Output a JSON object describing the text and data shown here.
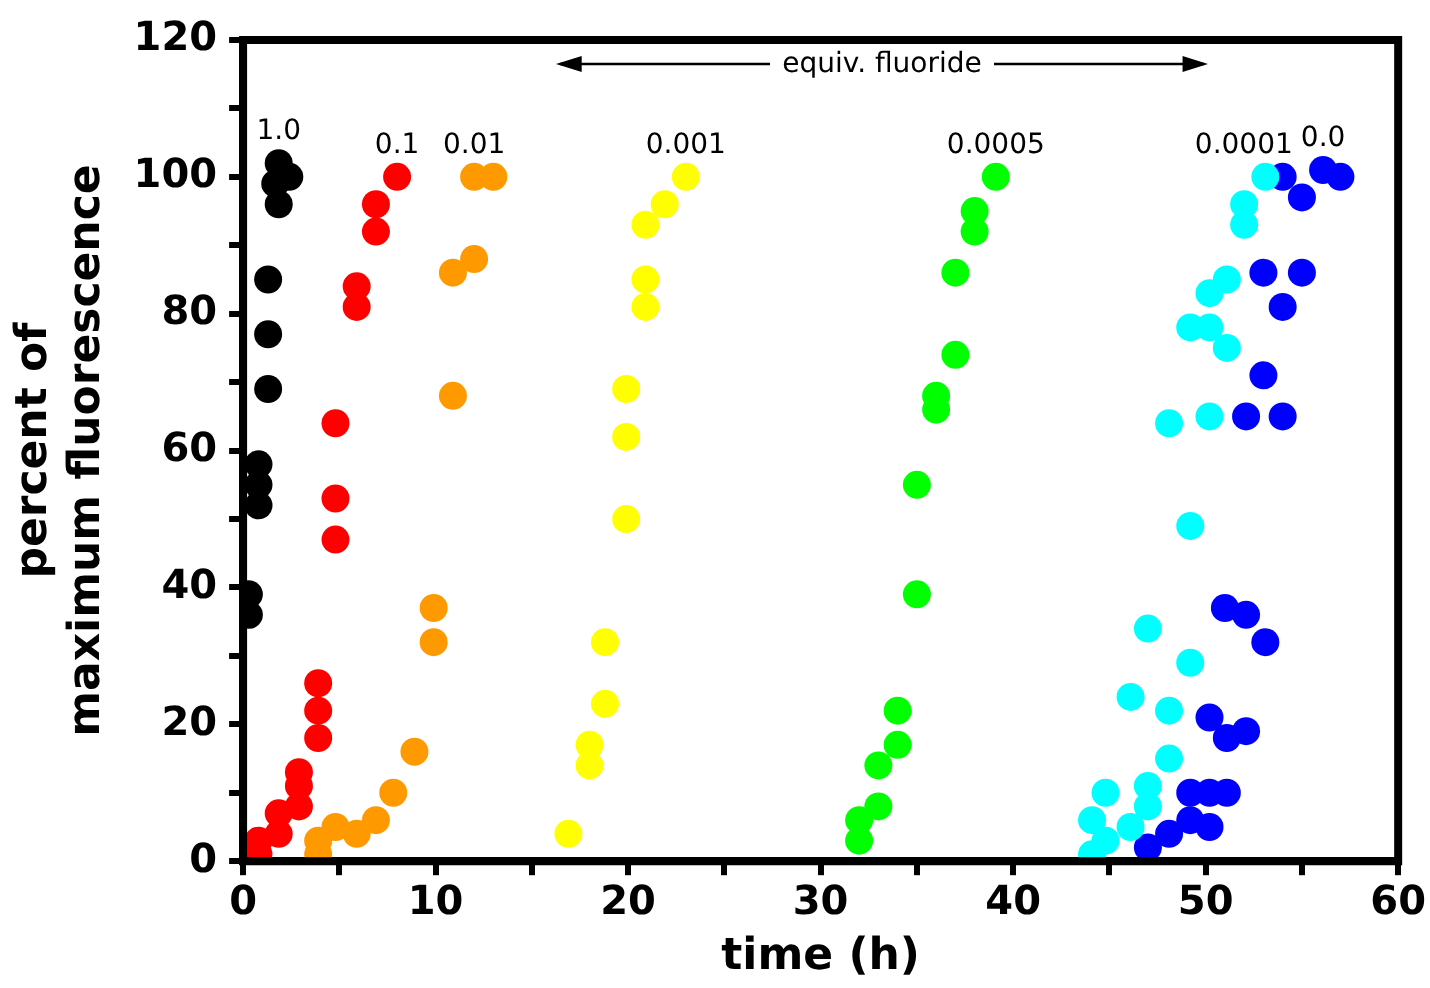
{
  "chart_data": {
    "type": "scatter",
    "xlabel": "time (h)",
    "ylabel": "percent of\nmaximum fluorescence",
    "annotations": [
      "equiv. fluoride"
    ],
    "xlim": [
      0,
      60
    ],
    "xticks": [
      0,
      {
        "value": 5,
        "label": null
      },
      10,
      {
        "value": 15,
        "label": null
      },
      20,
      {
        "value": 25,
        "label": null
      },
      30,
      {
        "value": 35,
        "label": null
      },
      40,
      {
        "value": 45,
        "label": null
      },
      50,
      {
        "value": 55,
        "label": null
      },
      60
    ],
    "ylim": [
      0,
      120
    ],
    "yticks": [
      0,
      {
        "value": 10,
        "label": null
      },
      20,
      {
        "value": 30,
        "label": null
      },
      40,
      {
        "value": 50,
        "label": null
      },
      60,
      {
        "value": 70,
        "label": null
      },
      80,
      {
        "value": 90,
        "label": null
      },
      100,
      {
        "value": 110,
        "label": null
      },
      120
    ],
    "grid": false,
    "legend": false,
    "marker": "circle",
    "series": [
      {
        "name": "1.0",
        "color": "#000000",
        "x": [
          1.85,
          2.4,
          1.67,
          1.85,
          1.3,
          1.3,
          1.3,
          0.8,
          0.8,
          0.8,
          0.3,
          0.3
        ],
        "values": [
          102,
          100,
          99,
          96,
          85,
          77,
          69,
          58,
          55,
          52,
          39,
          36
        ]
      },
      {
        "name": "0.1",
        "color": "#ff0000",
        "x": [
          8,
          6.9,
          6.9,
          5.9,
          5.9,
          4.8,
          4.8,
          4.8,
          3.9,
          3.9,
          3.9,
          2.9,
          2.9,
          2.9,
          1.85,
          1.85,
          0.8,
          0.8
        ],
        "values": [
          100,
          96,
          92,
          84,
          81,
          64,
          53,
          47,
          26,
          22,
          18,
          13,
          11,
          8,
          7,
          4,
          3,
          1
        ]
      },
      {
        "name": "0.01",
        "color": "#ff9900",
        "x": [
          12,
          13,
          12,
          10.9,
          10.9,
          9.9,
          9.9,
          8.9,
          7.8,
          6.9,
          5.9,
          4.8,
          3.9,
          3.9
        ],
        "values": [
          100,
          100,
          88,
          86,
          68,
          37,
          32,
          16,
          10,
          6,
          4,
          5,
          3,
          1
        ]
      },
      {
        "name": "0.001",
        "color": "#ffff00",
        "x": [
          23,
          21.9,
          20.9,
          20.9,
          20.9,
          19.9,
          19.9,
          19.9,
          18.8,
          18.8,
          18,
          18,
          16.9
        ],
        "values": [
          100,
          96,
          93,
          85,
          81,
          69,
          62,
          50,
          32,
          23,
          17,
          14,
          4
        ]
      },
      {
        "name": "0.0005",
        "color": "#00ff00",
        "x": [
          39.1,
          38,
          38,
          37,
          37,
          36,
          36,
          35,
          35,
          34,
          34,
          33,
          33,
          32,
          32
        ],
        "values": [
          100,
          95,
          92,
          86,
          74,
          68,
          66,
          55,
          39,
          22,
          17,
          14,
          8,
          6,
          3
        ]
      },
      {
        "name": "0.0001",
        "color": "#00ffff",
        "x": [
          53.1,
          52,
          52,
          51.1,
          50.2,
          49.2,
          50.2,
          51.1,
          48.1,
          50.2,
          49.2,
          47,
          49.2,
          46.1,
          48.1,
          48.1,
          44.8,
          47,
          47,
          44.1,
          46.1,
          44.8,
          44.1
        ],
        "values": [
          100,
          96,
          93,
          85,
          83,
          78,
          78,
          75,
          64,
          65,
          49,
          34,
          29,
          24,
          22,
          15,
          10,
          11,
          8,
          6,
          5,
          3,
          1
        ]
      },
      {
        "name": "0.0",
        "color": "#0000ff",
        "x": [
          54,
          55,
          56.1,
          57,
          53,
          55,
          54,
          53,
          52.1,
          54,
          51,
          52.1,
          53.1,
          50.2,
          51.1,
          52.1,
          49.2,
          50.2,
          51.1,
          50.2,
          49.2,
          48.1,
          47
        ],
        "values": [
          100,
          97,
          101,
          100,
          86,
          86,
          81,
          71,
          65,
          65,
          37,
          36,
          32,
          21,
          18,
          19,
          10,
          10,
          10,
          5,
          6,
          4,
          2
        ]
      }
    ]
  }
}
